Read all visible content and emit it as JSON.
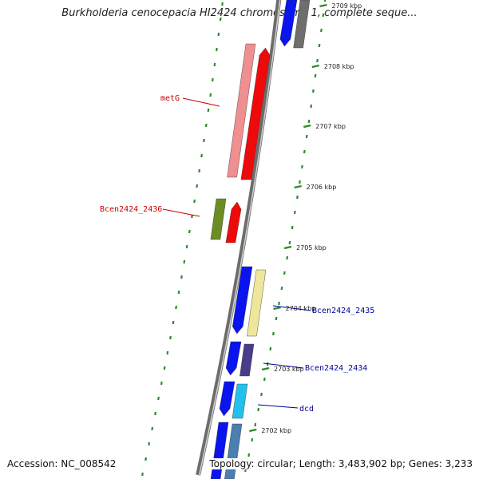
{
  "title": "Burkholderia cenocepacia HI2424 chromosome 1, complete seque...",
  "accession": "Accession: NC_008542",
  "summary": "Topology: circular; Length: 3,483,902 bp; Genes: 3,233",
  "colors": {
    "backbone": "#8c8c8c",
    "tick": "#2d8a2d",
    "label_red": "#cc0000",
    "label_blue": "#000099"
  },
  "ticks": [
    "2709 kbp",
    "2708 kbp",
    "2707 kbp",
    "2706 kbp",
    "2705 kbp",
    "2704 kbp",
    "2703 kbp",
    "2702 kbp"
  ],
  "gene_labels": [
    {
      "text": "metG",
      "color": "#cc0000"
    },
    {
      "text": "Bcen2424_2436",
      "color": "#cc0000"
    },
    {
      "text": "Bcen2424_2435",
      "color": "#000099"
    },
    {
      "text": "Bcen2424_2434",
      "color": "#000099"
    },
    {
      "text": "dcd",
      "color": "#000099"
    }
  ],
  "features": [
    {
      "name": "blue-cds-top",
      "fill": "#0a14ee"
    },
    {
      "name": "grey-cds-top",
      "fill": "#6e6e6e"
    },
    {
      "name": "metG-pink",
      "fill": "#ef8f8f"
    },
    {
      "name": "metG-red",
      "fill": "#ee0a0a"
    },
    {
      "name": "olive-cds",
      "fill": "#6b8e23"
    },
    {
      "name": "red-cds-2436",
      "fill": "#ee0a0a"
    },
    {
      "name": "blue-cds-2704",
      "fill": "#0a14ee"
    },
    {
      "name": "yellow-cds-2435",
      "fill": "#eee69a"
    },
    {
      "name": "blue-cds-2703",
      "fill": "#0a14ee"
    },
    {
      "name": "purple-cds-2434",
      "fill": "#483d8b"
    },
    {
      "name": "blue-cds-dcd",
      "fill": "#0a14ee"
    },
    {
      "name": "cyan-cds-dcd",
      "fill": "#22c0ee"
    },
    {
      "name": "blue-cds-bottom",
      "fill": "#0a14ee"
    },
    {
      "name": "steelblue-cds-bottom",
      "fill": "#4a7fb0"
    }
  ]
}
